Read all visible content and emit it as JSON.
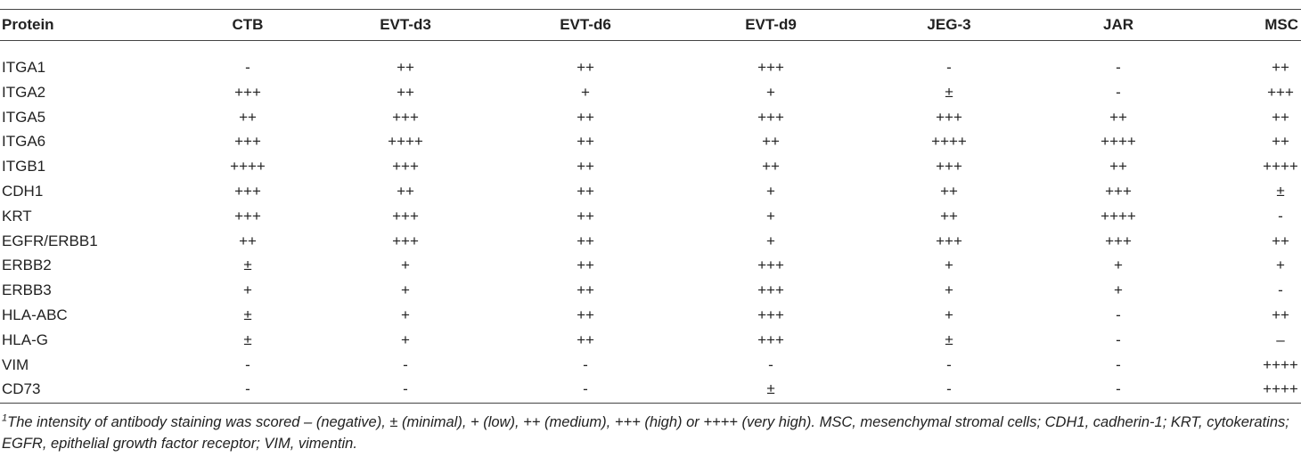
{
  "table": {
    "header": [
      "Protein",
      "CTB",
      "EVT-d3",
      "EVT-d6",
      "EVT-d9",
      "JEG-3",
      "JAR",
      "MSC"
    ],
    "rows": [
      [
        "ITGA1",
        "-",
        "++",
        "++",
        "+++",
        "-",
        "-",
        "++"
      ],
      [
        "ITGA2",
        "+++",
        "++",
        "+",
        "+",
        "±",
        "-",
        "+++"
      ],
      [
        "ITGA5",
        "++",
        "+++",
        "++",
        "+++",
        "+++",
        "++",
        "++"
      ],
      [
        "ITGA6",
        "+++",
        "++++",
        "++",
        "++",
        "++++",
        "++++",
        "++"
      ],
      [
        "ITGB1",
        "++++",
        "+++",
        "++",
        "++",
        "+++",
        "++",
        "++++"
      ],
      [
        "CDH1",
        "+++",
        "++",
        "++",
        "+",
        "++",
        "+++",
        "±"
      ],
      [
        "KRT",
        "+++",
        "+++",
        "++",
        "+",
        "++",
        "++++",
        "-"
      ],
      [
        "EGFR/ERBB1",
        "++",
        "+++",
        "++",
        "+",
        "+++",
        "+++",
        "++"
      ],
      [
        "ERBB2",
        "±",
        "+",
        "++",
        "+++",
        "+",
        "+",
        "+"
      ],
      [
        "ERBB3",
        "+",
        "+",
        "++",
        "+++",
        "+",
        "+",
        "-"
      ],
      [
        "HLA-ABC",
        "±",
        "+",
        "++",
        "+++",
        "+",
        "-",
        "++"
      ],
      [
        "HLA-G",
        "±",
        "+",
        "++",
        "+++",
        "±",
        "-",
        "–"
      ],
      [
        "VIM",
        "-",
        "-",
        "-",
        "-",
        "-",
        "-",
        "++++"
      ],
      [
        "CD73",
        "-",
        "-",
        "-",
        "±",
        "-",
        "-",
        "++++"
      ]
    ]
  },
  "footnote": {
    "mark": "1",
    "text": "The intensity of antibody staining was scored – (negative), ± (minimal), + (low), ++ (medium), +++ (high) or ++++ (very high). MSC, mesenchymal stromal cells; CDH1, cadherin-1; KRT, cytokeratins; EGFR, epithelial growth factor receptor; VIM, vimentin."
  }
}
